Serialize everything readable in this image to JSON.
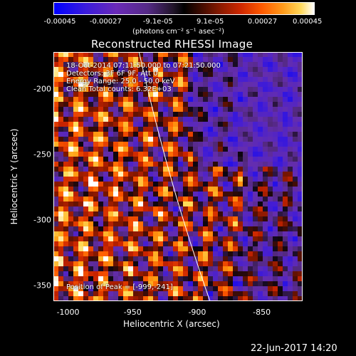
{
  "colorbar": {
    "tick_labels": [
      "-0.00045",
      "-0.00027",
      "-9.1e-05",
      "9.1e-05",
      "0.00027",
      "0.00045"
    ],
    "units": "(photons cm⁻² s⁻¹ asec⁻²)"
  },
  "plot": {
    "title": "Reconstructed RHESSI Image",
    "xlabel": "Heliocentric X (arcsec)",
    "ylabel": "Heliocentric Y (arcsec)",
    "x_ticks": [
      "-1000",
      "-950",
      "-900",
      "-850"
    ],
    "y_ticks": [
      "-200",
      "-250",
      "-300",
      "-350"
    ],
    "x_range": [
      -1013,
      -820
    ],
    "y_range": [
      -172,
      -362
    ]
  },
  "info": {
    "time": "18-Oct-2014 07:11:50.000 to 07:21:50.000",
    "detectors": "Detectors: 3F 6F 9F, Att 0",
    "energy": "Energy Range: 25.0 - 50.0 keV",
    "method": "Clean     Total counts: 6.32E+03",
    "peak": "Position of Peak = [-999,-241]"
  },
  "timestamp": "22-Jun-2017 14:20",
  "colors": {
    "background": "#000000",
    "limb_line": "#ffffff"
  }
}
